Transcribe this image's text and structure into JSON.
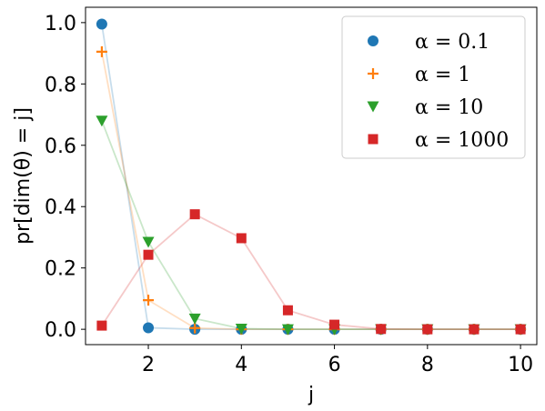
{
  "chart_data": {
    "type": "scatter",
    "title": "",
    "xlabel": "j",
    "ylabel": "pr[dim(θ) = j]",
    "xlim": [
      0.65,
      10.35
    ],
    "ylim": [
      -0.05,
      1.05
    ],
    "xticks": [
      2,
      4,
      6,
      8,
      10
    ],
    "yticks": [
      0.0,
      0.2,
      0.4,
      0.6,
      0.8,
      1.0
    ],
    "xtick_labels": [
      "2",
      "4",
      "6",
      "8",
      "10"
    ],
    "ytick_labels": [
      "0.0",
      "0.2",
      "0.4",
      "0.6",
      "0.8",
      "1.0"
    ],
    "grid": false,
    "legend_position": "top-right",
    "x": [
      1,
      2,
      3,
      4,
      5,
      6,
      7,
      8,
      9,
      10
    ],
    "series": [
      {
        "name": "α = 0.1",
        "marker": "circle",
        "color": "#1f77b4",
        "values": [
          0.995,
          0.005,
          0.0,
          0.0,
          0.0,
          0.0,
          0.0,
          0.0,
          0.0,
          0.0
        ]
      },
      {
        "name": "α = 1",
        "marker": "plus",
        "color": "#ff7f0e",
        "values": [
          0.905,
          0.095,
          0.004,
          0.0,
          0.0,
          0.0,
          0.0,
          0.0,
          0.0,
          0.0
        ]
      },
      {
        "name": "α = 10",
        "marker": "triangle-down",
        "color": "#2ca02c",
        "values": [
          0.68,
          0.285,
          0.035,
          0.002,
          0.0,
          0.0,
          0.0,
          0.0,
          0.0,
          0.0
        ]
      },
      {
        "name": "α = 1000",
        "marker": "square",
        "color": "#d62728",
        "values": [
          0.012,
          0.243,
          0.375,
          0.297,
          0.062,
          0.015,
          0.001,
          0.0,
          0.0,
          0.0
        ]
      }
    ]
  }
}
